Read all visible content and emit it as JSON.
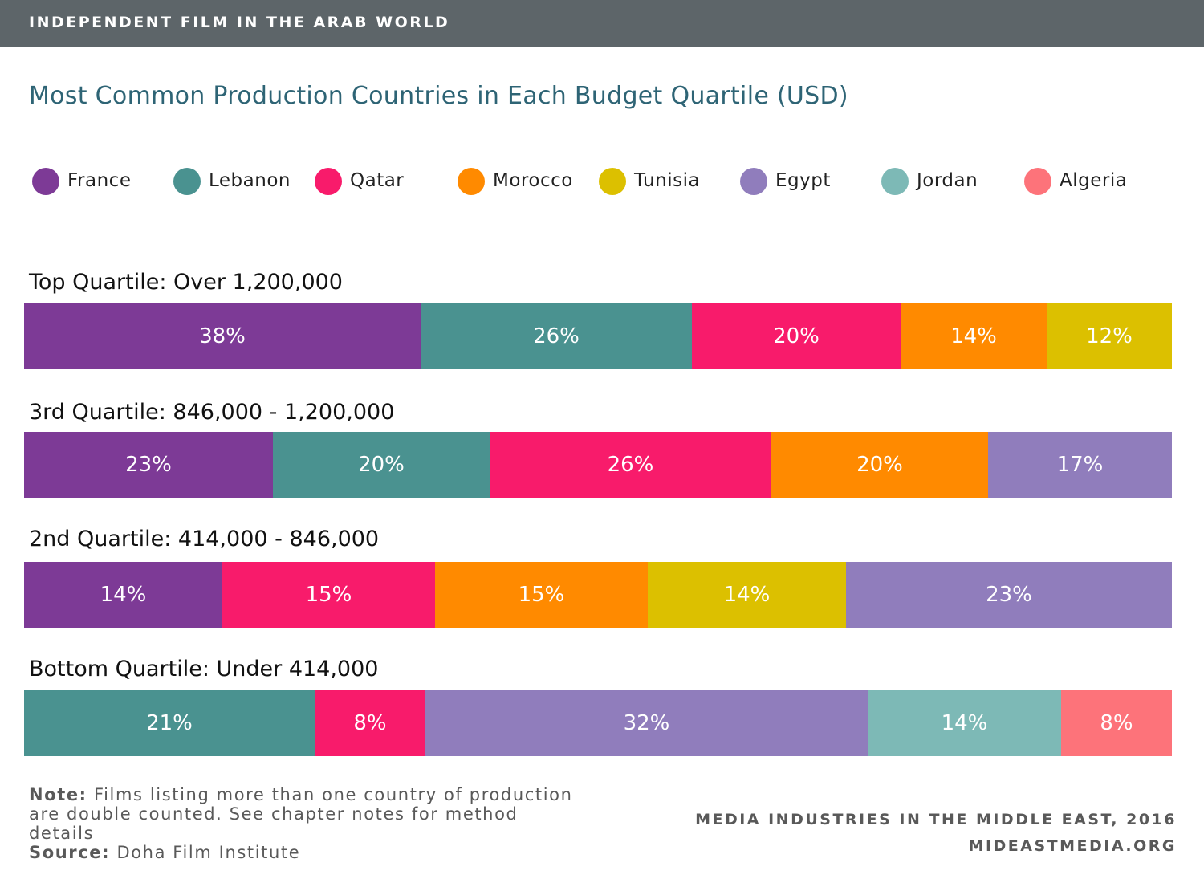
{
  "banner": {
    "title": "INDEPENDENT FILM IN THE ARAB WORLD"
  },
  "colors": {
    "France": "#7d3a96",
    "Lebanon": "#4a9290",
    "Qatar": "#f81b6b",
    "Morocco": "#ff8a00",
    "Tunisia": "#dcc000",
    "Egypt": "#907dbc",
    "Jordan": "#7db9b6",
    "Algeria": "#fd737a"
  },
  "chart_data": {
    "type": "bar",
    "orientation": "horizontal",
    "stacked": true,
    "title": "Most Common Production Countries in Each Budget Quartile (USD)",
    "legend_placement": "top",
    "legend": [
      "France",
      "Lebanon",
      "Qatar",
      "Morocco",
      "Tunisia",
      "Egypt",
      "Jordan",
      "Algeria"
    ],
    "categories": [
      {
        "label": "Top Quartile: Over 1,200,000",
        "segments": [
          {
            "country": "France",
            "value": 38,
            "label": "38%"
          },
          {
            "country": "Lebanon",
            "value": 26,
            "label": "26%"
          },
          {
            "country": "Qatar",
            "value": 20,
            "label": "20%"
          },
          {
            "country": "Morocco",
            "value": 14,
            "label": "14%"
          },
          {
            "country": "Tunisia",
            "value": 12,
            "label": "12%"
          }
        ]
      },
      {
        "label": "3rd Quartile: 846,000 - 1,200,000",
        "segments": [
          {
            "country": "France",
            "value": 23,
            "label": "23%"
          },
          {
            "country": "Lebanon",
            "value": 20,
            "label": "20%"
          },
          {
            "country": "Qatar",
            "value": 26,
            "label": "26%"
          },
          {
            "country": "Morocco",
            "value": 20,
            "label": "20%"
          },
          {
            "country": "Egypt",
            "value": 17,
            "label": "17%"
          }
        ]
      },
      {
        "label": "2nd Quartile: 414,000 - 846,000",
        "segments": [
          {
            "country": "France",
            "value": 14,
            "label": "14%"
          },
          {
            "country": "Qatar",
            "value": 15,
            "label": "15%"
          },
          {
            "country": "Morocco",
            "value": 15,
            "label": "15%"
          },
          {
            "country": "Tunisia",
            "value": 14,
            "label": "14%"
          },
          {
            "country": "Egypt",
            "value": 23,
            "label": "23%"
          }
        ]
      },
      {
        "label": "Bottom Quartile: Under 414,000",
        "segments": [
          {
            "country": "Lebanon",
            "value": 21,
            "label": "21%"
          },
          {
            "country": "Qatar",
            "value": 8,
            "label": "8%"
          },
          {
            "country": "Egypt",
            "value": 32,
            "label": "32%"
          },
          {
            "country": "Jordan",
            "value": 14,
            "label": "14%"
          },
          {
            "country": "Algeria",
            "value": 8,
            "label": "8%"
          }
        ]
      }
    ]
  },
  "footer": {
    "note_label": "Note:",
    "note_text": "Films listing more than one country of production are double counted. See chapter notes for method details",
    "source_label": "Source:",
    "source_text": "Doha Film Institute",
    "credit_line1": "MEDIA INDUSTRIES IN THE MIDDLE EAST, 2016",
    "credit_line2": "MIDEASTMEDIA.ORG"
  }
}
